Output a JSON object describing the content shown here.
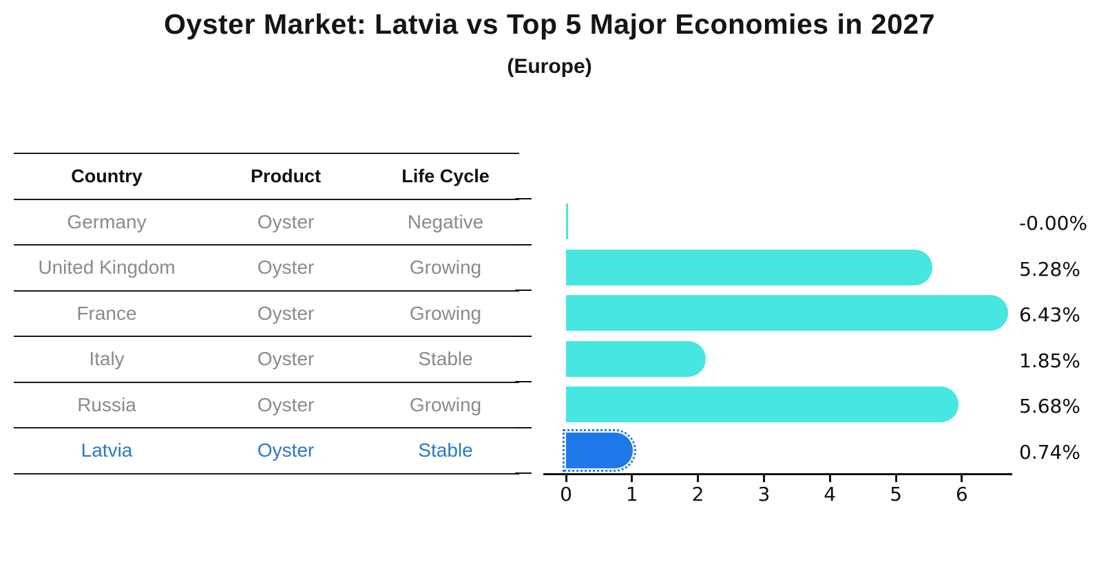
{
  "title": "Oyster Market: Latvia vs Top 5 Major Economies in 2027",
  "subtitle": "(Europe)",
  "table": {
    "headers": [
      "Country",
      "Product",
      "Life Cycle"
    ],
    "rows": [
      {
        "country": "Germany",
        "product": "Oyster",
        "life_cycle": "Negative",
        "highlight": false
      },
      {
        "country": "United Kingdom",
        "product": "Oyster",
        "life_cycle": "Growing",
        "highlight": false
      },
      {
        "country": "France",
        "product": "Oyster",
        "life_cycle": "Growing",
        "highlight": false
      },
      {
        "country": "Italy",
        "product": "Oyster",
        "life_cycle": "Stable",
        "highlight": false
      },
      {
        "country": "Russia",
        "product": "Oyster",
        "life_cycle": "Growing",
        "highlight": false
      },
      {
        "country": "Latvia",
        "product": "Oyster",
        "life_cycle": "Stable",
        "highlight": true
      }
    ]
  },
  "chart_data": {
    "type": "bar",
    "orientation": "horizontal",
    "title": "Oyster Market: Latvia vs Top 5 Major Economies in 2027 (Europe)",
    "categories": [
      "Germany",
      "United Kingdom",
      "France",
      "Italy",
      "Russia",
      "Latvia"
    ],
    "values": [
      -0.0,
      5.28,
      6.43,
      1.85,
      5.68,
      0.74
    ],
    "value_labels": [
      "-0.00%",
      "5.28%",
      "6.43%",
      "1.85%",
      "5.68%",
      "0.74%"
    ],
    "x_ticks": [
      0,
      1,
      2,
      3,
      4,
      5,
      6
    ],
    "xlim": [
      -0.34,
      6.77
    ],
    "grid": false,
    "legend": false,
    "highlight_index": 5,
    "bar_color": "#47E6E0",
    "highlight_color": "#1E78E8",
    "highlight_text_color": "#2979C6",
    "table_text_color": "#8a8a8a"
  }
}
